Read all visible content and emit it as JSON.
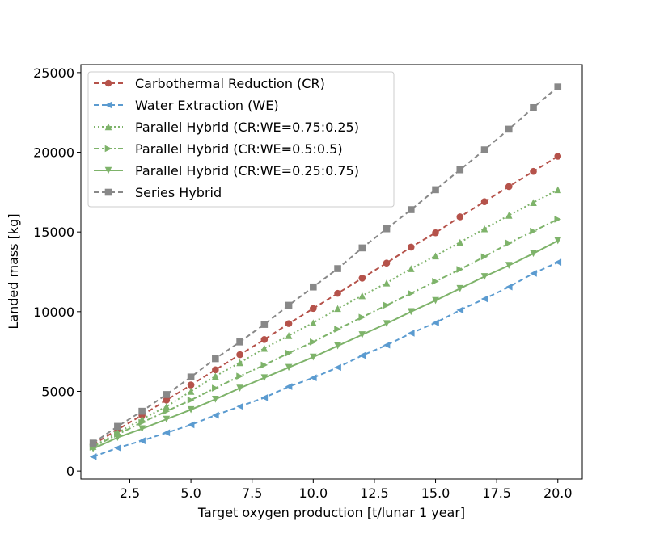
{
  "chart_data": {
    "type": "line",
    "title": "",
    "xlabel": "Target oxygen production [t/lunar 1 year]",
    "ylabel": "Landed mass [kg]",
    "xlim": [
      0.5,
      21.0
    ],
    "ylim": [
      -500,
      25500
    ],
    "xticks": [
      2.5,
      5.0,
      7.5,
      10.0,
      12.5,
      15.0,
      17.5,
      20.0
    ],
    "xtick_labels": [
      "2.5",
      "5.0",
      "7.5",
      "10.0",
      "12.5",
      "15.0",
      "17.5",
      "20.0"
    ],
    "yticks": [
      0,
      5000,
      10000,
      15000,
      20000,
      25000
    ],
    "ytick_labels": [
      "0",
      "5000",
      "10000",
      "15000",
      "20000",
      "25000"
    ],
    "legend_position": "upper-left",
    "x": [
      1,
      2,
      3,
      4,
      5,
      6,
      7,
      8,
      9,
      10,
      11,
      12,
      13,
      14,
      15,
      16,
      17,
      18,
      19,
      20
    ],
    "series": [
      {
        "name": "Carbothermal Reduction (CR)",
        "color": "#b5524a",
        "dash": "6,4",
        "marker": "circle",
        "values": [
          1650,
          2600,
          3500,
          4450,
          5400,
          6350,
          7300,
          8250,
          9250,
          10200,
          11150,
          12100,
          13050,
          14050,
          14950,
          15950,
          16900,
          17850,
          18800,
          19750
        ]
      },
      {
        "name": "Water Extraction (WE)",
        "color": "#5b9bd0",
        "dash": "6,4",
        "marker": "triangle-left",
        "values": [
          900,
          1450,
          1900,
          2400,
          2900,
          3500,
          4050,
          4600,
          5300,
          5850,
          6500,
          7250,
          7900,
          8650,
          9300,
          10100,
          10800,
          11550,
          12400,
          13100
        ]
      },
      {
        "name": "Parallel Hybrid (CR:WE=0.75:0.25)",
        "color": "#7eb36a",
        "dash": "2,3",
        "marker": "triangle-up",
        "values": [
          1550,
          2400,
          3250,
          4050,
          5000,
          5950,
          6800,
          7700,
          8500,
          9300,
          10200,
          11000,
          11800,
          12700,
          13500,
          14350,
          15200,
          16050,
          16850,
          17650
        ]
      },
      {
        "name": "Parallel Hybrid (CR:WE=0.5:0.5)",
        "color": "#7eb36a",
        "dash": "7,3,2,3",
        "marker": "triangle-right",
        "values": [
          1500,
          2300,
          3050,
          3750,
          4450,
          5200,
          5950,
          6650,
          7400,
          8100,
          8900,
          9650,
          10400,
          11150,
          11900,
          12650,
          13450,
          14300,
          15050,
          15800
        ]
      },
      {
        "name": "Parallel Hybrid (CR:WE=0.25:0.75)",
        "color": "#7eb36a",
        "dash": "",
        "marker": "triangle-down",
        "values": [
          1400,
          2100,
          2650,
          3250,
          3850,
          4500,
          5200,
          5850,
          6500,
          7150,
          7850,
          8550,
          9250,
          10000,
          10700,
          11450,
          12200,
          12900,
          13650,
          14450
        ]
      },
      {
        "name": "Series Hybrid",
        "color": "#888888",
        "dash": "6,4",
        "marker": "square",
        "values": [
          1750,
          2800,
          3750,
          4800,
          5900,
          7050,
          8100,
          9200,
          10400,
          11550,
          12700,
          14000,
          15200,
          16400,
          17650,
          18900,
          20150,
          21450,
          22800,
          24100
        ]
      }
    ]
  }
}
